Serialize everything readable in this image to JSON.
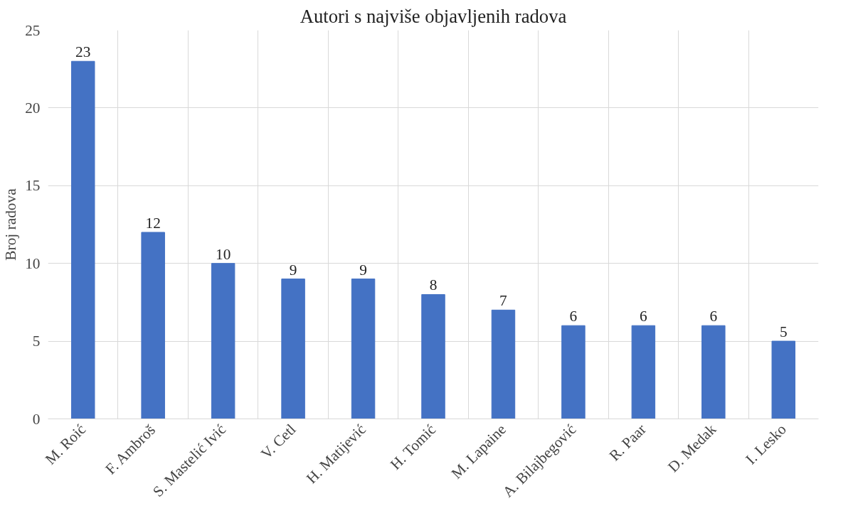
{
  "chart_data": {
    "type": "bar",
    "title": "Autori s najviše objavljenih radova",
    "ylabel": "Broj radova",
    "categories": [
      "M. Roić",
      "F. Ambroš",
      "S. Mastelić Ivić",
      "V. Cetl",
      "H. Matijević",
      "H. Tomić",
      "M. Lapaine",
      "A. Bilajbegović",
      "R. Paar",
      "D. Medak",
      "I. Lesko"
    ],
    "values": [
      23,
      12,
      10,
      9,
      9,
      8,
      7,
      6,
      6,
      6,
      5
    ],
    "color": "#4472c4",
    "ylim": [
      0,
      25
    ],
    "yticks": [
      0,
      5,
      10,
      15,
      20,
      25
    ],
    "grid": true,
    "data_labels": true
  }
}
